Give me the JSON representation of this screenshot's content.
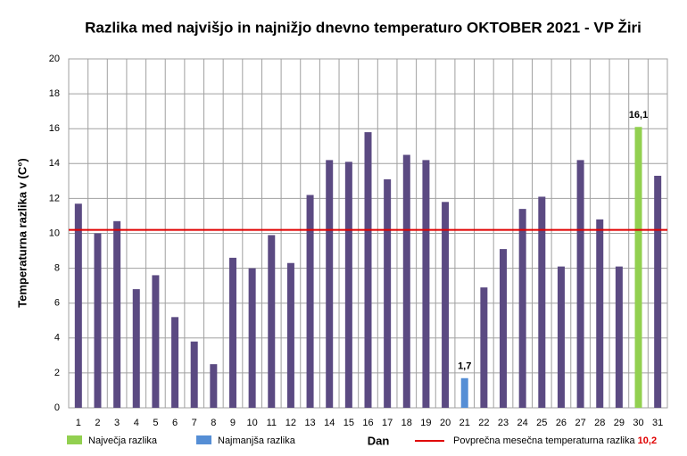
{
  "chart_data": {
    "type": "bar",
    "title": "Razlika med najvišjo in najnižjo dnevno temperaturo OKTOBER 2021 - VP Žiri",
    "x_label": "Dan",
    "y_label": "Temperaturna razlika v (C°)",
    "categories": [
      "1",
      "2",
      "3",
      "4",
      "5",
      "6",
      "7",
      "8",
      "9",
      "10",
      "11",
      "12",
      "13",
      "14",
      "15",
      "16",
      "17",
      "18",
      "19",
      "20",
      "21",
      "22",
      "23",
      "24",
      "25",
      "26",
      "27",
      "28",
      "29",
      "30",
      "31"
    ],
    "values": [
      11.7,
      10.0,
      10.7,
      6.8,
      7.6,
      5.2,
      3.8,
      2.5,
      8.6,
      8.0,
      9.9,
      8.3,
      12.2,
      14.2,
      14.1,
      15.8,
      13.1,
      14.5,
      14.2,
      11.8,
      1.7,
      6.9,
      9.1,
      11.4,
      12.1,
      8.1,
      14.2,
      10.8,
      8.1,
      16.1,
      13.3
    ],
    "value_labels": [
      null,
      null,
      null,
      null,
      null,
      null,
      null,
      null,
      null,
      null,
      null,
      null,
      null,
      null,
      null,
      null,
      null,
      null,
      null,
      null,
      "1,7",
      null,
      null,
      null,
      null,
      null,
      null,
      null,
      null,
      "16,1",
      null
    ],
    "color": "#5b4a82",
    "highlights": [
      {
        "name": "Največja razlika",
        "color": "#92d050"
      },
      {
        "name": "Najmanjša razlika",
        "color": "#558ed5"
      }
    ],
    "average": {
      "name": "Povprečna mesečna temperaturna razlika",
      "value": 10.2,
      "label": "10,2",
      "color": "#e00000"
    },
    "ylim": [
      0,
      20
    ],
    "yticks": [
      0,
      2,
      4,
      6,
      8,
      10,
      12,
      14,
      16,
      18,
      20
    ],
    "grid": true
  }
}
